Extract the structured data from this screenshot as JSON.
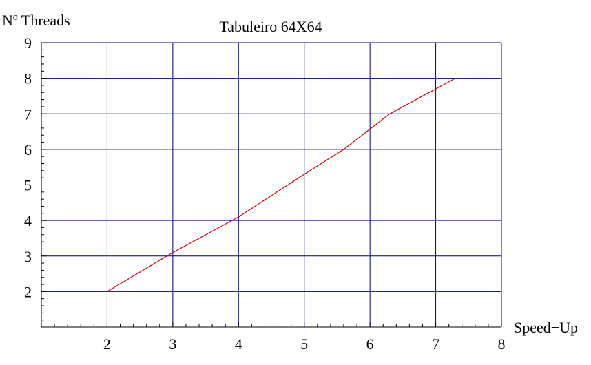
{
  "chart_data": {
    "type": "line",
    "title": "Tabuleiro 64X64",
    "xlabel": "Speed−Up",
    "ylabel": "Nº Threads",
    "xlim": [
      1,
      8
    ],
    "ylim": [
      1,
      9
    ],
    "x_ticks": [
      2,
      3,
      4,
      5,
      6,
      7,
      8
    ],
    "y_ticks": [
      2,
      3,
      4,
      5,
      6,
      7,
      8,
      9
    ],
    "grid": true,
    "series": [
      {
        "color": "#cc0000",
        "points": [
          {
            "x": 2.0,
            "y": 2.0
          },
          {
            "x": 3.0,
            "y": 3.1
          },
          {
            "x": 4.0,
            "y": 4.1
          },
          {
            "x": 5.0,
            "y": 5.3
          },
          {
            "x": 5.6,
            "y": 6.0
          },
          {
            "x": 6.3,
            "y": 7.0
          },
          {
            "x": 7.3,
            "y": 8.0
          }
        ]
      }
    ],
    "colors": {
      "grid": "#000080",
      "axes": "#000000"
    }
  }
}
